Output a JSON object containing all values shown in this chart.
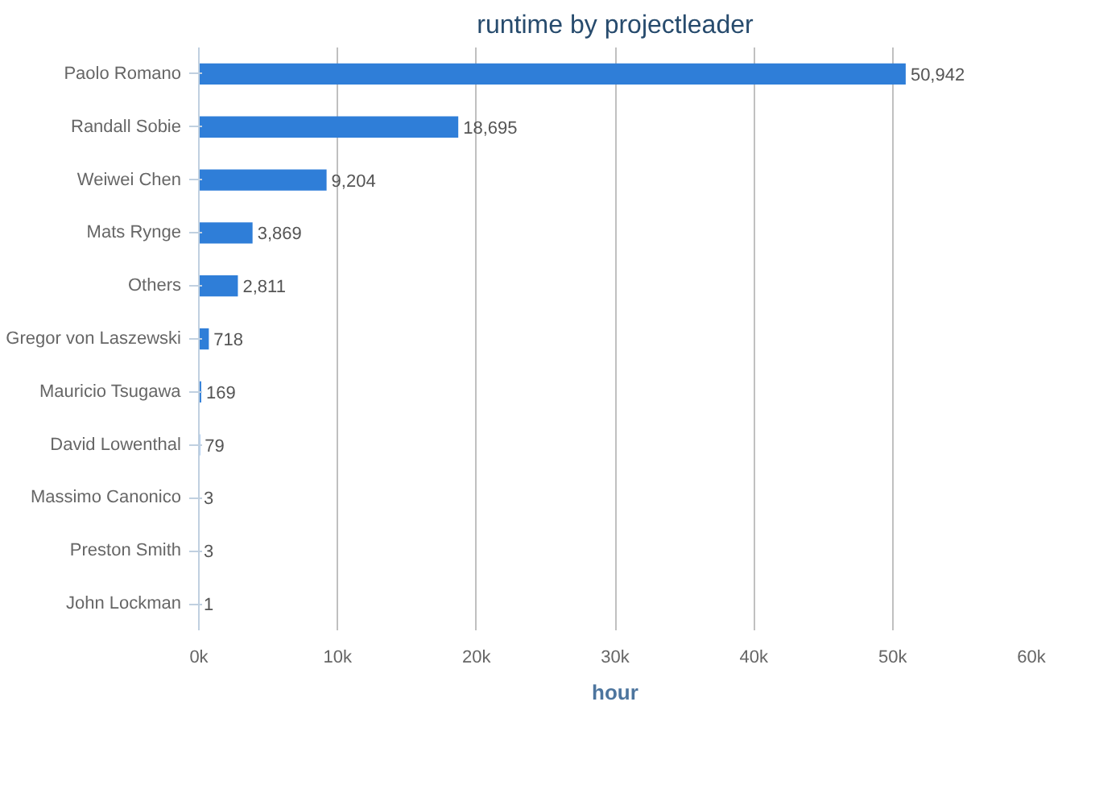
{
  "chart_data": {
    "type": "bar",
    "orientation": "horizontal",
    "title": "runtime by projectleader",
    "xlabel": "hour",
    "categories": [
      "Paolo Romano",
      "Randall Sobie",
      "Weiwei Chen",
      "Mats Rynge",
      "Others",
      "Gregor von Laszewski",
      "Mauricio Tsugawa",
      "David Lowenthal",
      "Massimo Canonico",
      "Preston Smith",
      "John Lockman"
    ],
    "series": [
      {
        "color": "#2f7ed8",
        "values": [
          50942,
          18695,
          9204,
          3869,
          2811,
          718,
          169,
          79,
          3,
          3,
          1
        ],
        "value_labels": [
          "50,942",
          "18,695",
          "9,204",
          "3,869",
          "2,811",
          "718",
          "169",
          "79",
          "3",
          "3",
          "1"
        ]
      }
    ],
    "xlim": [
      0,
      60000
    ],
    "xticks": [
      {
        "value": 0,
        "label": "0k"
      },
      {
        "value": 10000,
        "label": "10k"
      },
      {
        "value": 20000,
        "label": "20k"
      },
      {
        "value": 30000,
        "label": "30k"
      },
      {
        "value": 40000,
        "label": "40k"
      },
      {
        "value": 50000,
        "label": "50k"
      },
      {
        "value": 60000,
        "label": "60k"
      }
    ],
    "grid": "x"
  }
}
